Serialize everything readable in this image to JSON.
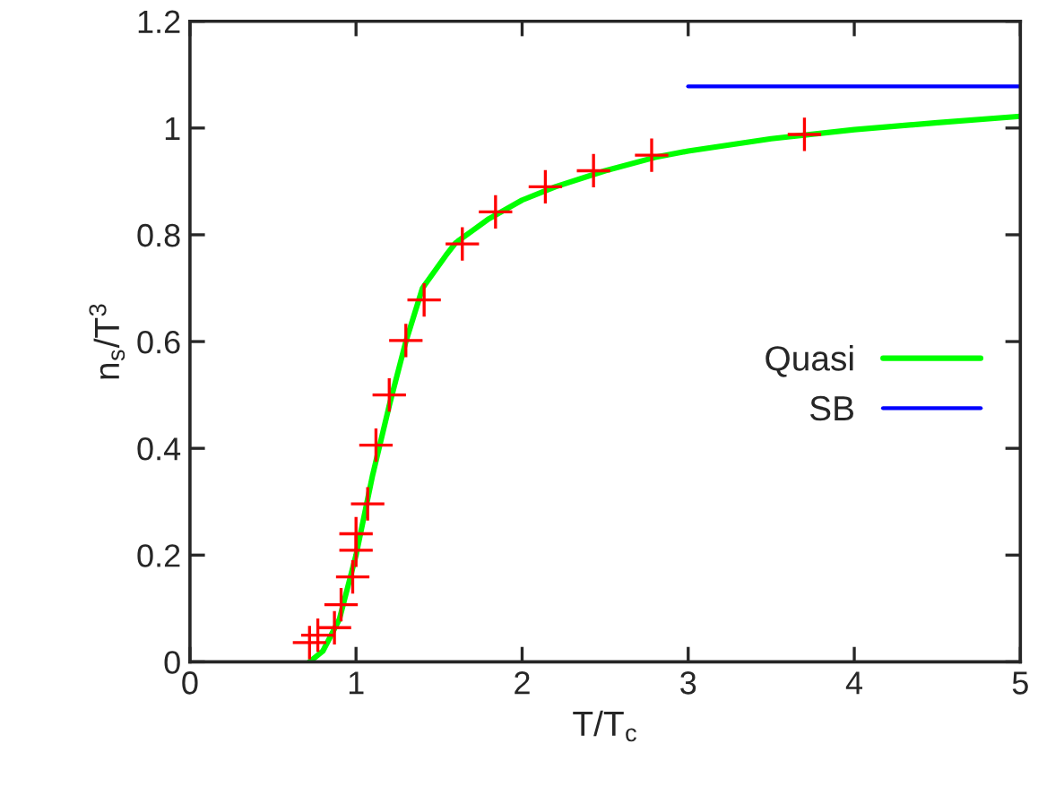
{
  "chart_data": {
    "type": "line",
    "xlabel": "T/T$_{c}$",
    "ylabel": "n$_{s}$/T$^{3}$",
    "xlim": [
      0,
      5
    ],
    "ylim": [
      0,
      1.2
    ],
    "xticks": [
      0,
      1,
      2,
      3,
      4,
      5
    ],
    "yticks": [
      0,
      0.2,
      0.4,
      0.6,
      0.8,
      1,
      1.2
    ],
    "grid": false,
    "legend": "right",
    "series": [
      {
        "type": "scatter",
        "marker": "cross",
        "color": "#ff0000",
        "x": [
          0.72,
          0.77,
          0.87,
          0.91,
          0.98,
          1.0,
          1.0,
          1.07,
          1.12,
          1.2,
          1.3,
          1.41,
          1.64,
          1.84,
          2.14,
          2.43,
          2.78,
          3.7
        ],
        "values": [
          0.036,
          0.05,
          0.064,
          0.107,
          0.159,
          0.209,
          0.24,
          0.296,
          0.406,
          0.5,
          0.602,
          0.678,
          0.783,
          0.843,
          0.89,
          0.92,
          0.949,
          0.988
        ]
      },
      {
        "name": "Quasi",
        "color": "#00ff00",
        "x": [
          0.72,
          0.8,
          0.9,
          1.0,
          1.1,
          1.2,
          1.3,
          1.4,
          1.54,
          1.6,
          1.8,
          2.0,
          2.2,
          2.5,
          2.8,
          3.0,
          3.5,
          4.0,
          4.5,
          5.0
        ],
        "values": [
          0,
          0.02,
          0.08,
          0.2,
          0.35,
          0.48,
          0.6,
          0.7,
          0.761,
          0.785,
          0.83,
          0.865,
          0.89,
          0.92,
          0.945,
          0.957,
          0.98,
          0.997,
          1.01,
          1.022
        ]
      },
      {
        "name": "SB",
        "color": "#0000ff",
        "x": [
          3,
          5
        ],
        "values": [
          1.078,
          1.078
        ]
      }
    ]
  }
}
